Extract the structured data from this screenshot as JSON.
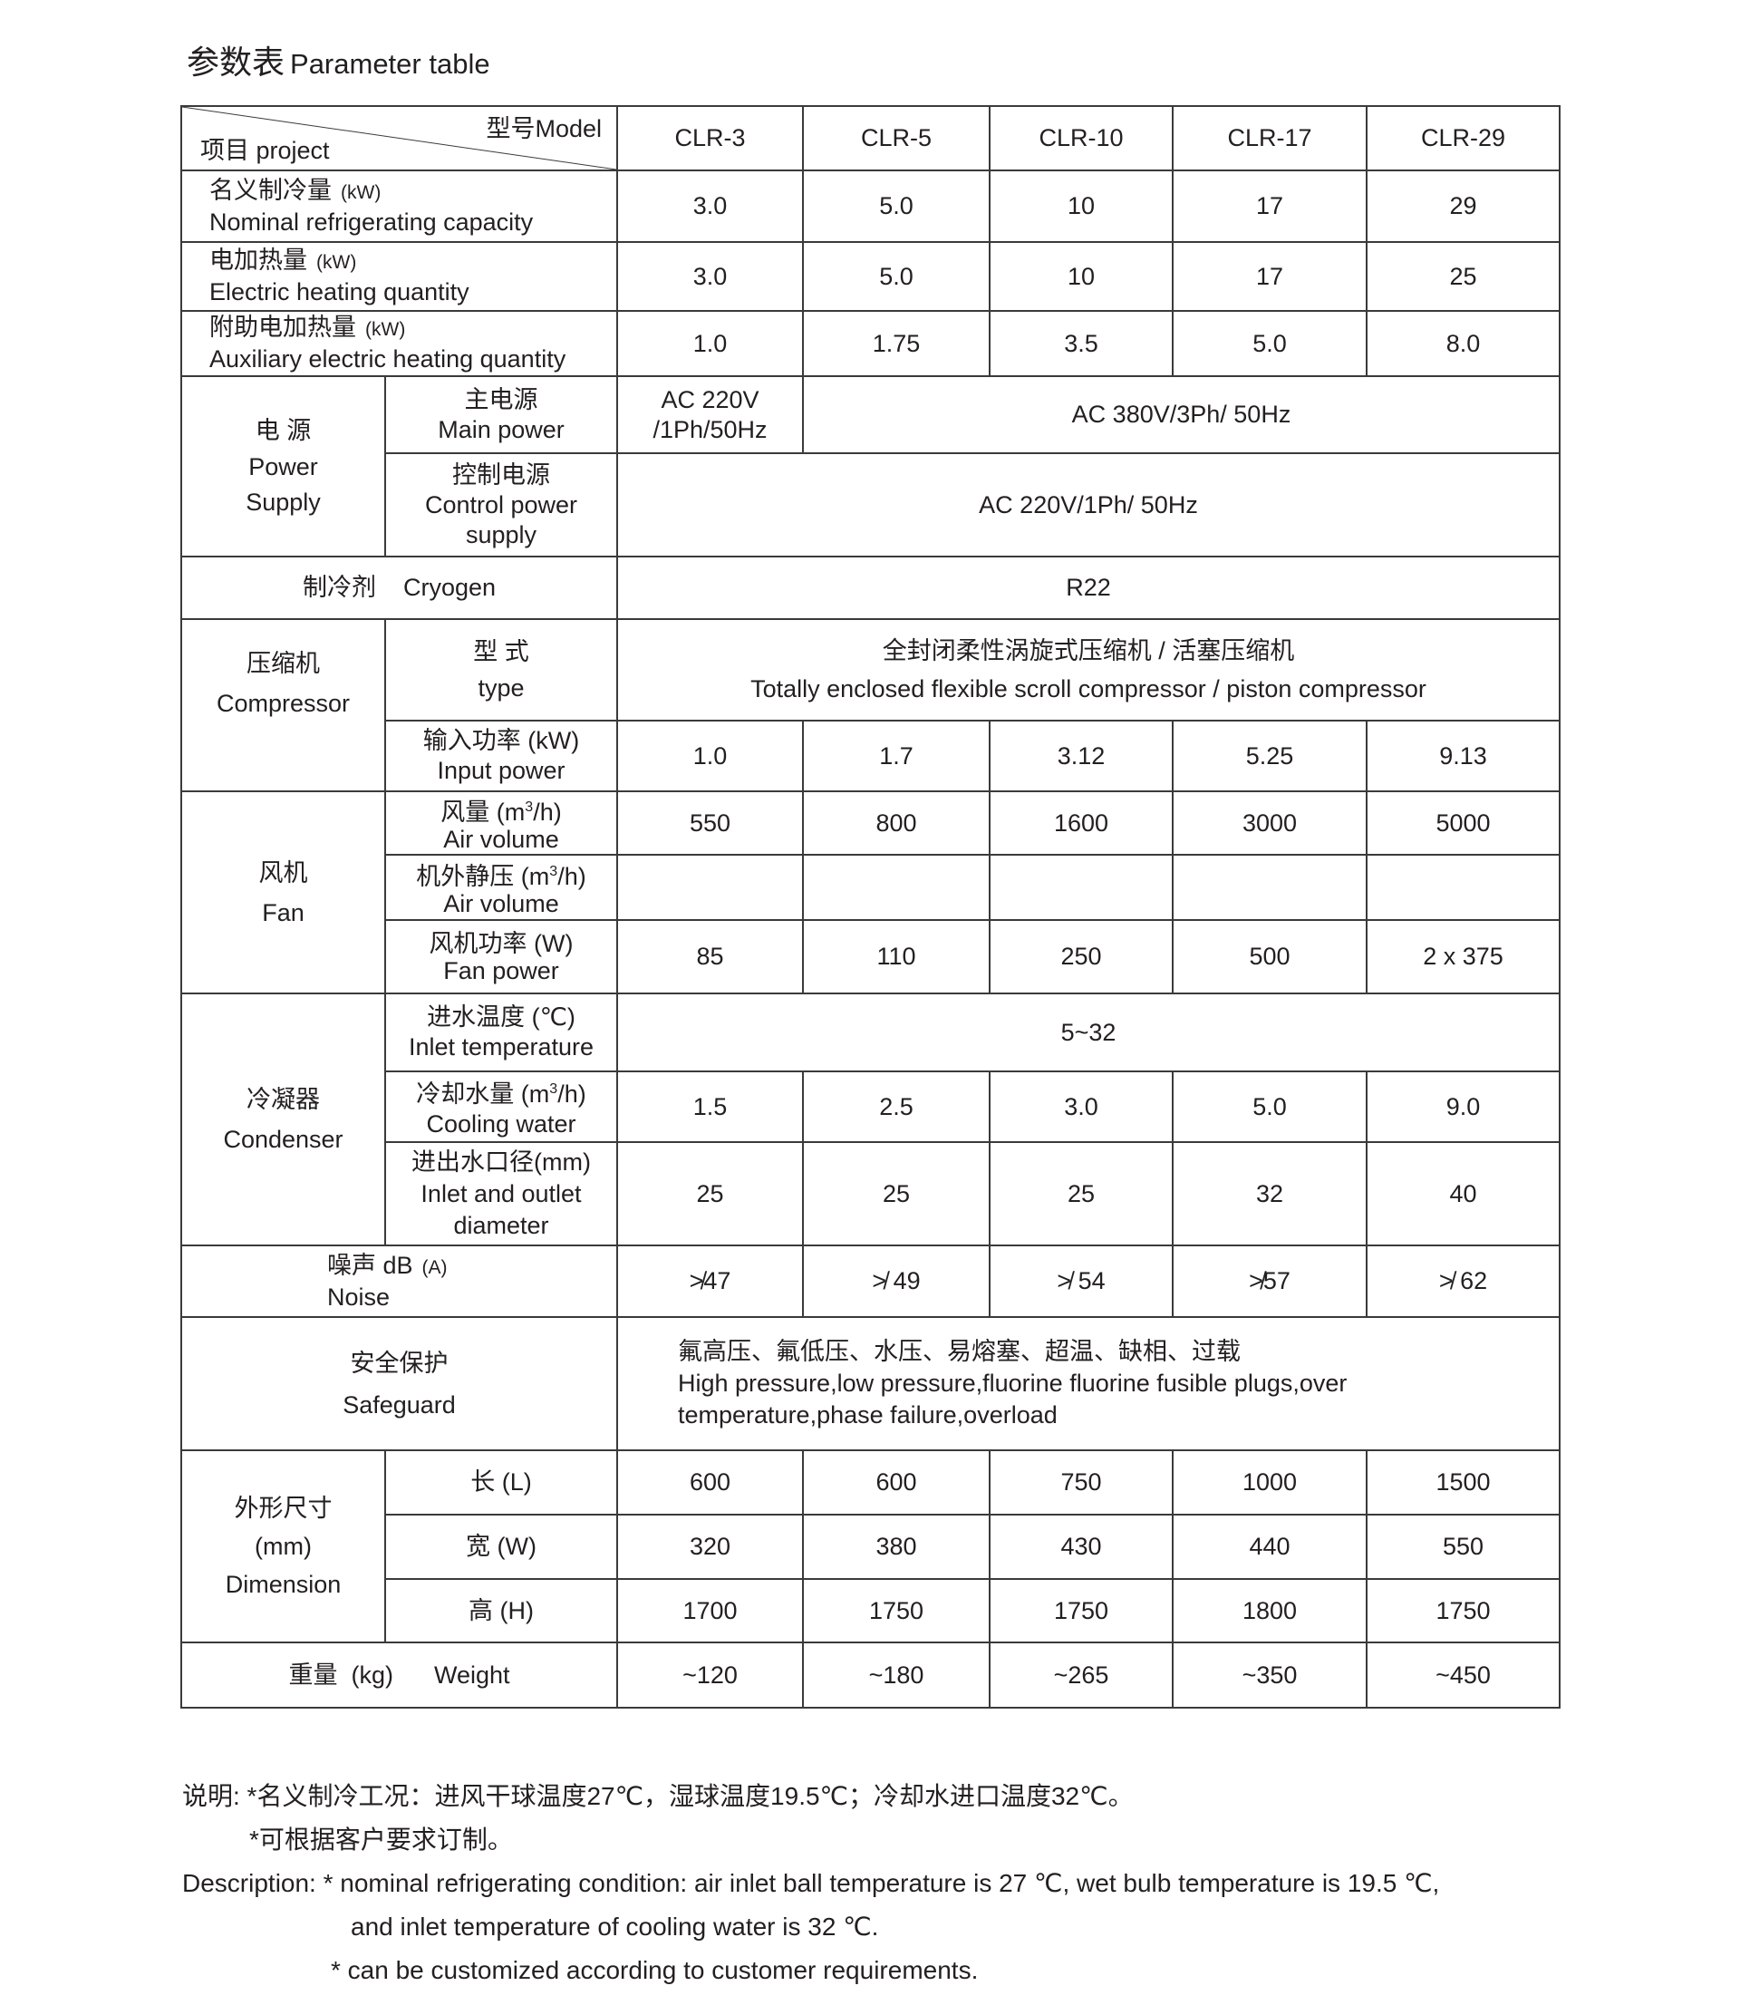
{
  "title": {
    "cn": "参数表",
    "en": "Parameter table"
  },
  "header": {
    "model": "型号Model",
    "project": "项目 project",
    "models": [
      "CLR-3",
      "CLR-5",
      "CLR-10",
      "CLR-17",
      "CLR-29"
    ]
  },
  "rows": {
    "cooling": {
      "cn": "名义制冷量",
      "unit": "(kW)",
      "en": "Nominal refrigerating capacity",
      "values": [
        "3.0",
        "5.0",
        "10",
        "17",
        "29"
      ]
    },
    "heating": {
      "cn": "电加热量",
      "unit": "(kW)",
      "en": "Electric heating quantity",
      "values": [
        "3.0",
        "5.0",
        "10",
        "17",
        "25"
      ]
    },
    "aux": {
      "cn": "附助电加热量",
      "unit": "(kW)",
      "en": "Auxiliary electric heating quantity",
      "values": [
        "1.0",
        "1.75",
        "3.5",
        "5.0",
        "8.0"
      ]
    },
    "power": {
      "cn": "电 源",
      "en1": "Power",
      "en2": "Supply",
      "main": {
        "cn": "主电源",
        "en": "Main  power",
        "v1a": "AC 220V",
        "v1b": "/1Ph/50Hz",
        "rest": "AC 380V/3Ph/ 50Hz"
      },
      "control": {
        "cn": "控制电源",
        "en1": "Control power",
        "en2": "supply",
        "value": "AC 220V/1Ph/ 50Hz"
      }
    },
    "cryogen": {
      "cn": "制冷剂",
      "en": "Cryogen",
      "value": "R22"
    },
    "compressor": {
      "cn": "压缩机",
      "en": "Compressor",
      "type": {
        "cn": "型  式",
        "en": "type",
        "value_cn": "全封闭柔性涡旋式压缩机 / 活塞压缩机",
        "value_en": "Totally enclosed flexible scroll compressor / piston compressor"
      },
      "input": {
        "cn": "输入功率 (kW)",
        "en": "Input power",
        "values": [
          "1.0",
          "1.7",
          "3.12",
          "5.25",
          "9.13"
        ]
      }
    },
    "fan": {
      "cn": "风机",
      "en": "Fan",
      "air": {
        "cn": "风量 (m",
        "sup": "3",
        "cn2": "/h)",
        "en": "Air volume",
        "values": [
          "550",
          "800",
          "1600",
          "3000",
          "5000"
        ]
      },
      "static": {
        "cn": "机外静压 (m",
        "sup": "3",
        "cn2": "/h)",
        "en": "Air volume",
        "values": [
          "",
          "",
          "",
          "",
          ""
        ]
      },
      "power": {
        "cn": "风机功率  (W)",
        "en": "Fan power",
        "values": [
          "85",
          "110",
          "250",
          "500",
          "2 x 375"
        ]
      }
    },
    "condenser": {
      "cn": "冷凝器",
      "en": "Condenser",
      "inlet": {
        "cn": "进水温度  (℃)",
        "en": "Inlet temperature",
        "value": "5~32"
      },
      "water": {
        "cn": "冷却水量 (m",
        "sup": "3",
        "cn2": "/h)",
        "en": "Cooling water",
        "values": [
          "1.5",
          "2.5",
          "3.0",
          "5.0",
          "9.0"
        ]
      },
      "diameter": {
        "cn": "进出水口径(mm)",
        "en1": "Inlet and outlet",
        "en2": "diameter",
        "values": [
          "25",
          "25",
          "25",
          "32",
          "40"
        ]
      }
    },
    "noise": {
      "cn": "噪声   dB",
      "unit": "(A)",
      "en": "Noise",
      "values": [
        "≯47",
        "≯ 49",
        "≯ 54",
        "≯57",
        "≯ 62"
      ]
    },
    "safeguard": {
      "cn": "安全保护",
      "en": "Safeguard",
      "value_cn": "氟高压、氟低压、水压、易熔塞、超温、缺相、过载",
      "value_en1": "High pressure,low pressure,fluorine fluorine fusible plugs,over",
      "value_en2": "temperature,phase failure,overload"
    },
    "dimension": {
      "cn": "外形尺寸",
      "unit": "(mm)",
      "en": "Dimension",
      "length": {
        "label": "长  (L)",
        "values": [
          "600",
          "600",
          "750",
          "1000",
          "1500"
        ]
      },
      "width": {
        "label": "宽  (W)",
        "values": [
          "320",
          "380",
          "430",
          "440",
          "550"
        ]
      },
      "height": {
        "label": "高  (H)",
        "values": [
          "1700",
          "1750",
          "1750",
          "1800",
          "1750"
        ]
      }
    },
    "weight": {
      "label": "重量  (kg)      Weight",
      "values": [
        "~120",
        "~180",
        "~265",
        "~350",
        "~450"
      ]
    }
  },
  "notes": {
    "cn1": "说明: *名义制冷工况：进风干球温度27℃，湿球温度19.5℃；冷却水进口温度32℃。",
    "cn2": "*可根据客户要求订制。",
    "en1": "Description: * nominal refrigerating condition: air inlet ball temperature is 27 ℃,  wet bulb temperature is 19.5 ℃,",
    "en2": "and inlet temperature of cooling water is 32 ℃.",
    "en3": "* can be customized according to customer requirements."
  }
}
